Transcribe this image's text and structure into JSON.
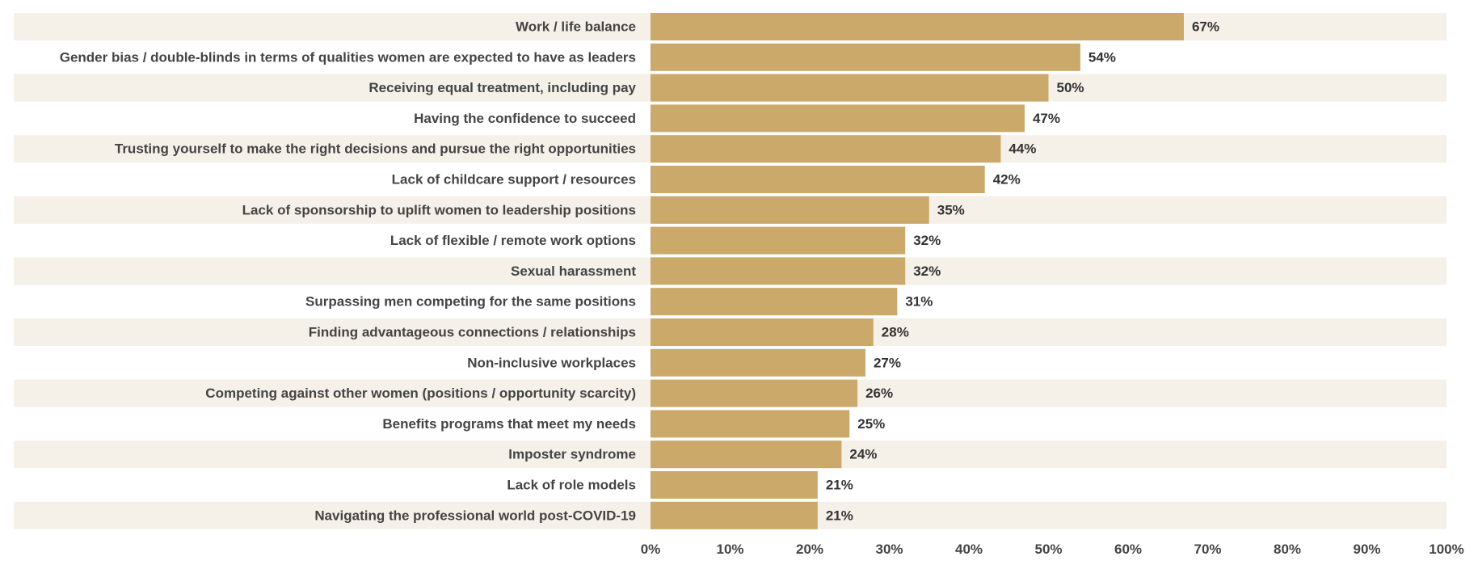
{
  "chart_data": {
    "type": "bar",
    "orientation": "horizontal",
    "categories": [
      "Work / life balance",
      "Gender bias / double-blinds in terms of qualities women are expected to have as leaders",
      "Receiving equal treatment, including pay",
      "Having the confidence to succeed",
      "Trusting yourself to make the right decisions and pursue the right opportunities",
      "Lack of childcare support / resources",
      "Lack of sponsorship to uplift women to leadership positions",
      "Lack of flexible / remote work options",
      "Sexual harassment",
      "Surpassing men competing for the same positions",
      "Finding advantageous connections / relationships",
      "Non-inclusive workplaces",
      "Competing against other women (positions / opportunity scarcity)",
      "Benefits programs that meet my needs",
      "Imposter syndrome",
      "Lack of role models",
      "Navigating the professional world post-COVID-19"
    ],
    "values": [
      67,
      54,
      50,
      47,
      44,
      42,
      35,
      32,
      32,
      31,
      28,
      27,
      26,
      25,
      24,
      21,
      21
    ],
    "value_labels": [
      "67%",
      "54%",
      "50%",
      "47%",
      "44%",
      "42%",
      "35%",
      "32%",
      "32%",
      "31%",
      "28%",
      "27%",
      "26%",
      "25%",
      "24%",
      "21%",
      "21%"
    ],
    "xlim": [
      0,
      100
    ],
    "x_ticks": [
      "0%",
      "10%",
      "20%",
      "30%",
      "40%",
      "50%",
      "60%",
      "70%",
      "80%",
      "90%",
      "100%"
    ],
    "title": "",
    "xlabel": "",
    "ylabel": "",
    "grid": false,
    "legend": "none",
    "colors": {
      "bar": "#CBA96B",
      "row_band": "#F5F0E8",
      "text": "#444444"
    }
  }
}
